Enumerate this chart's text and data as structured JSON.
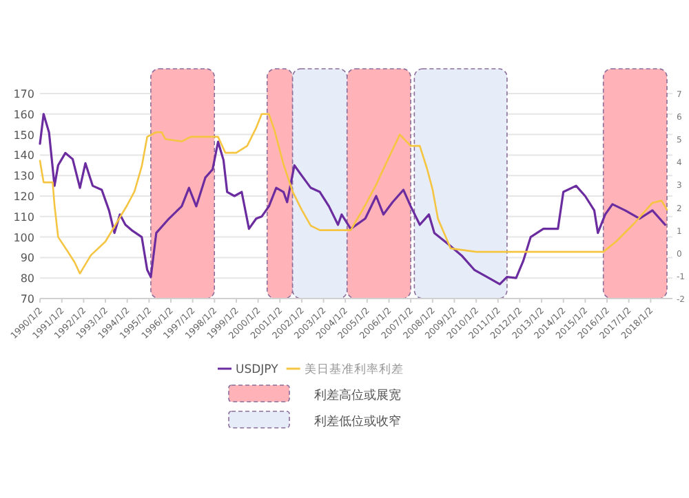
{
  "chart_data": {
    "type": "line",
    "series": [
      {
        "name": "USDJPY",
        "color": "#6a2c9f",
        "axis": "y",
        "x": [
          "1990-01",
          "1990-03",
          "1990-06",
          "1990-09",
          "1990-11",
          "1991-03",
          "1991-07",
          "1991-11",
          "1992-02",
          "1992-06",
          "1992-11",
          "1993-03",
          "1993-06",
          "1993-09",
          "1993-12",
          "1994-04",
          "1994-09",
          "1994-12",
          "1995-02",
          "1995-05",
          "1995-12",
          "1996-07",
          "1996-11",
          "1997-03",
          "1997-08",
          "1997-12",
          "1998-03",
          "1998-06",
          "1998-08",
          "1998-12",
          "1999-04",
          "1999-08",
          "1999-12",
          "2000-03",
          "2000-07",
          "2000-11",
          "2001-03",
          "2001-05",
          "2001-09",
          "2002-01",
          "2002-06",
          "2002-11",
          "2003-04",
          "2003-09",
          "2003-11",
          "2004-04",
          "2004-12",
          "2005-06",
          "2005-10",
          "2006-03",
          "2006-09",
          "2007-01",
          "2007-06",
          "2007-11",
          "2008-02",
          "2008-09",
          "2009-05",
          "2009-12",
          "2010-08",
          "2011-02",
          "2011-06",
          "2011-11",
          "2012-03",
          "2012-07",
          "2013-02",
          "2013-10",
          "2014-01",
          "2014-08",
          "2015-01",
          "2015-06",
          "2015-08",
          "2015-12",
          "2016-04",
          "2016-11",
          "2017-07",
          "2018-02",
          "2018-09"
        ],
        "values": [
          145.5,
          160,
          151,
          125,
          135,
          141,
          138,
          124,
          136,
          125,
          123,
          113,
          102,
          111,
          106,
          103,
          100,
          84,
          80.5,
          102,
          109,
          115,
          124,
          115,
          129,
          133,
          146.5,
          137.5,
          122,
          120,
          122,
          104,
          109,
          110,
          115,
          124,
          122,
          117,
          135,
          130,
          124,
          122,
          115,
          106,
          111,
          104,
          109,
          120,
          111,
          117,
          123,
          115,
          106,
          111,
          102,
          97,
          91,
          84,
          80,
          77,
          80.5,
          80,
          88.5,
          100,
          104,
          104,
          122,
          125,
          120,
          113,
          102,
          111,
          116,
          113,
          109,
          113,
          106
        ]
      },
      {
        "name": "美日基准利率利差",
        "color": "#f5c542",
        "axis": "y2",
        "x": [
          "1990-01",
          "1990-03",
          "1990-08",
          "1990-09",
          "1990-11",
          "1991-04",
          "1991-08",
          "1991-11",
          "1992-05",
          "1993-01",
          "1993-07",
          "1994-01",
          "1994-05",
          "1994-09",
          "1994-12",
          "1995-05",
          "1995-08",
          "1995-10",
          "1996-07",
          "1996-12",
          "1998-03",
          "1998-07",
          "1999-01",
          "1999-07",
          "1999-12",
          "2000-03",
          "2000-07",
          "2000-10",
          "2001-03",
          "2001-08",
          "2002-01",
          "2002-06",
          "2002-11",
          "2003-09",
          "2004-04",
          "2004-12",
          "2005-06",
          "2006-01",
          "2006-07",
          "2007-01",
          "2007-06",
          "2007-10",
          "2008-01",
          "2008-04",
          "2008-11",
          "2010-01",
          "2012-01",
          "2014-01",
          "2015-11",
          "2016-06",
          "2017-04",
          "2018-02",
          "2018-07",
          "2018-10"
        ],
        "values": [
          4.05,
          3.1,
          3.1,
          2.1,
          0.7,
          0.1,
          -0.4,
          -0.9,
          -0.1,
          0.5,
          1.3,
          2.1,
          2.7,
          3.8,
          5.1,
          5.3,
          5.3,
          5.0,
          4.9,
          5.1,
          5.1,
          4.4,
          4.4,
          4.7,
          5.5,
          6.1,
          6.1,
          5.4,
          3.9,
          2.7,
          1.9,
          1.2,
          1.0,
          1.0,
          1.0,
          2.1,
          3.0,
          4.2,
          5.2,
          4.7,
          4.7,
          3.7,
          2.8,
          1.5,
          0.2,
          0.05,
          0.05,
          0.05,
          0.05,
          0.5,
          1.3,
          2.2,
          2.3,
          1.9
        ]
      }
    ],
    "bands": [
      {
        "axis": "x",
        "from": "1995-02",
        "to": "1998-01",
        "label": "利差高位或展宽",
        "color": "#ffb3b8"
      },
      {
        "axis": "x",
        "from": "2000-06",
        "to": "2001-08",
        "color": "#ffb3b8"
      },
      {
        "axis": "x",
        "from": "2001-08",
        "to": "2004-02",
        "label": "利差低位或收窄",
        "color": "#e6ecf8"
      },
      {
        "axis": "x",
        "from": "2004-02",
        "to": "2007-01",
        "color": "#ffb3b8"
      },
      {
        "axis": "x",
        "from": "2007-03",
        "to": "2011-06",
        "color": "#e6ecf8"
      },
      {
        "axis": "x",
        "from": "2015-11",
        "to": "2018-10",
        "color": "#ffb3b8"
      }
    ],
    "xlim": [
      "1990-01",
      "2019-01-02"
    ],
    "xticks": [
      {
        "value": "1990-01-02",
        "label": "1990/1/2"
      },
      {
        "value": "1991-01-02",
        "label": "1991/1/2"
      },
      {
        "value": "1992-01-02",
        "label": "1992/1/2"
      },
      {
        "value": "1993-01-02",
        "label": "1993/1/2"
      },
      {
        "value": "1994-01-02",
        "label": "1994/1/2"
      },
      {
        "value": "1995-01-02",
        "label": "1995/1/2"
      },
      {
        "value": "1996-01-02",
        "label": "1996/1/2"
      },
      {
        "value": "1997-01-02",
        "label": "1997/1/2"
      },
      {
        "value": "1998-01-02",
        "label": "1998/1/2"
      },
      {
        "value": "1999-01-02",
        "label": "1999/1/2"
      },
      {
        "value": "2000-01-02",
        "label": "2000/1/2"
      },
      {
        "value": "2001-01-02",
        "label": "2001/1/2"
      },
      {
        "value": "2002-01-02",
        "label": "2002/1/2"
      },
      {
        "value": "2003-01-02",
        "label": "2003/1/2"
      },
      {
        "value": "2004-01-02",
        "label": "2004/1/2"
      },
      {
        "value": "2005-01-02",
        "label": "2005/1/2"
      },
      {
        "value": "2006-01-02",
        "label": "2006/1/2"
      },
      {
        "value": "2007-01-02",
        "label": "2007/1/2"
      },
      {
        "value": "2008-01-02",
        "label": "2008/1/2"
      },
      {
        "value": "2009-01-02",
        "label": "2009/1/2"
      },
      {
        "value": "2010-01-02",
        "label": "2010/1/2"
      },
      {
        "value": "2011-01-02",
        "label": "2011/1/2"
      },
      {
        "value": "2012-01-02",
        "label": "2012/1/2"
      },
      {
        "value": "2013-01-02",
        "label": "2013/1/2"
      },
      {
        "value": "2014-01-02",
        "label": "2014/1/2"
      },
      {
        "value": "2015-01-02",
        "label": "2015/1/2"
      },
      {
        "value": "2016-01-02",
        "label": "2016/1/2"
      },
      {
        "value": "2017-01-02",
        "label": "2017/1/2"
      },
      {
        "value": "2018-01-02",
        "label": "2018/1/2"
      }
    ],
    "ylim": [
      70,
      170
    ],
    "yticks": [
      70,
      80,
      90,
      100,
      110,
      120,
      130,
      140,
      150,
      160,
      170
    ],
    "y2lim": [
      -2,
      7
    ],
    "y2ticks": [
      -2,
      -1,
      0,
      1,
      2,
      3,
      4,
      5,
      6,
      7
    ],
    "grid": "y",
    "legend": "bottom",
    "marker": "none",
    "line_style": "solid"
  }
}
